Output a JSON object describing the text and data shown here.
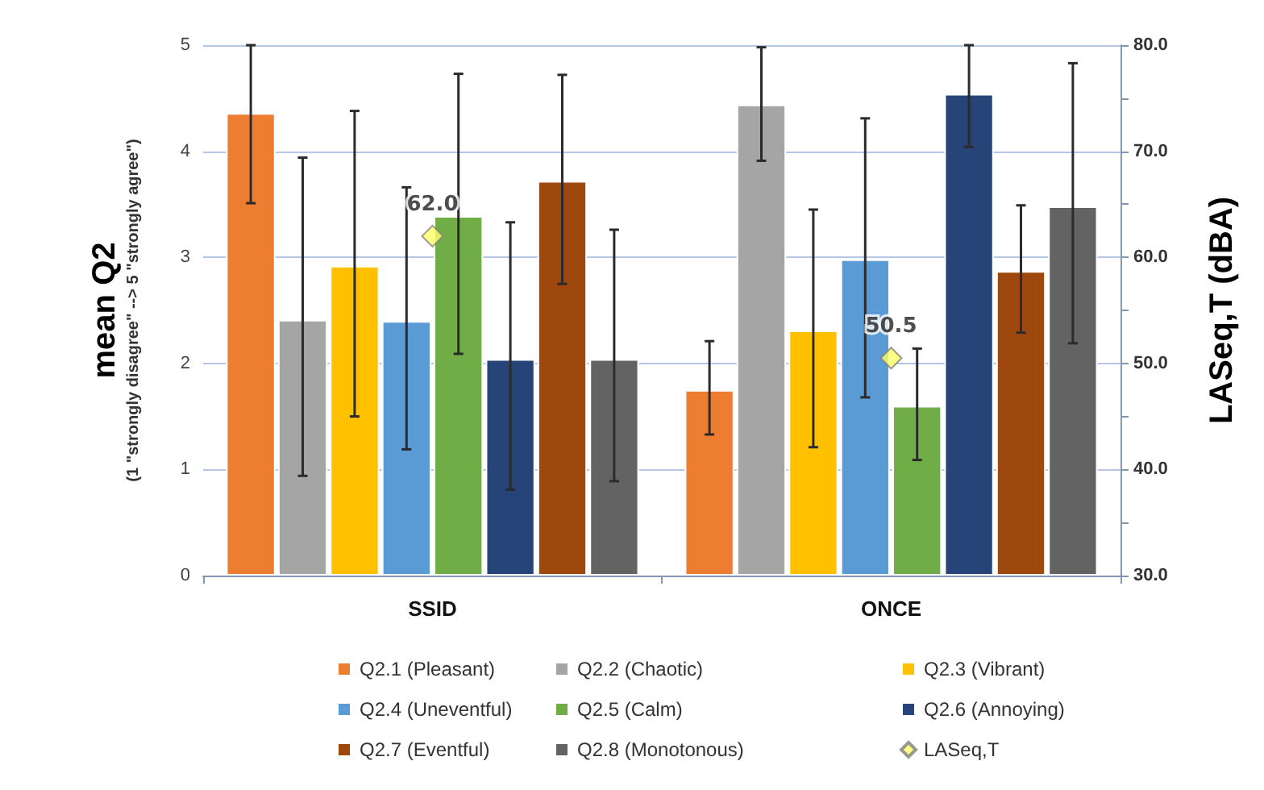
{
  "chart_data": {
    "type": "bar",
    "ylabel": "mean Q2\n(1 \"strongly disagree\" --> 5 \"strongly agree\")",
    "y2label": "LASeq,T (dBA)",
    "categories": [
      "SSID",
      "ONCE"
    ],
    "series": [
      {
        "name": "Q2.1 (Pleasant)",
        "color": "#ed7d31",
        "values": [
          4.36,
          1.75
        ],
        "errors": [
          [
            3.51,
            5.0
          ],
          [
            1.33,
            2.21
          ]
        ]
      },
      {
        "name": "Q2.2 (Chaotic)",
        "color": "#a5a5a5",
        "values": [
          2.41,
          4.44
        ],
        "errors": [
          [
            0.94,
            3.94
          ],
          [
            3.91,
            4.98
          ]
        ]
      },
      {
        "name": "Q2.3 (Vibrant)",
        "color": "#ffc000",
        "values": [
          2.92,
          2.31
        ],
        "errors": [
          [
            1.5,
            4.38
          ],
          [
            1.21,
            3.45
          ]
        ]
      },
      {
        "name": "Q2.4 (Uneventful)",
        "color": "#5b9bd5",
        "values": [
          2.4,
          2.98
        ],
        "errors": [
          [
            1.19,
            3.66
          ],
          [
            1.68,
            4.31
          ]
        ]
      },
      {
        "name": "Q2.5 (Calm)",
        "color": "#70ad47",
        "values": [
          3.39,
          1.6
        ],
        "errors": [
          [
            2.09,
            4.73
          ],
          [
            1.09,
            2.14
          ]
        ]
      },
      {
        "name": "Q2.6 (Annoying)",
        "color": "#264478",
        "values": [
          2.04,
          4.54
        ],
        "errors": [
          [
            0.81,
            3.33
          ],
          [
            4.04,
            5.0
          ]
        ]
      },
      {
        "name": "Q2.7 (Eventful)",
        "color": "#9e480e",
        "values": [
          3.72,
          2.87
        ],
        "errors": [
          [
            2.75,
            4.72
          ],
          [
            2.29,
            3.49
          ]
        ]
      },
      {
        "name": "Q2.8 (Monotonous)",
        "color": "#636363",
        "values": [
          2.04,
          3.48
        ],
        "errors": [
          [
            0.89,
            3.26
          ],
          [
            2.19,
            4.83
          ]
        ]
      },
      {
        "name": "LASeq,T",
        "type": "scatter",
        "axis": "y2",
        "marker": "diamond",
        "color": "#ffff66",
        "x": [
          "SSID",
          "ONCE"
        ],
        "values": [
          62.0,
          50.5
        ],
        "value_labels": [
          "62.0",
          "50.5"
        ]
      }
    ],
    "ylim": [
      0,
      5
    ],
    "yticks": [
      0,
      1,
      2,
      3,
      4,
      5
    ],
    "y2lim": [
      30,
      80
    ],
    "y2ticks": [
      {
        "value": 30,
        "label": "30.0"
      },
      {
        "value": 35,
        "label": null
      },
      {
        "value": 40,
        "label": "40.0"
      },
      {
        "value": 45,
        "label": null
      },
      {
        "value": 50,
        "label": "50.0"
      },
      {
        "value": 55,
        "label": null
      },
      {
        "value": 60,
        "label": "60.0"
      },
      {
        "value": 65,
        "label": null
      },
      {
        "value": 70,
        "label": "70.0"
      },
      {
        "value": 75,
        "label": null
      },
      {
        "value": 80,
        "label": "80.0"
      }
    ],
    "grid": "y",
    "legend": "bottom"
  }
}
